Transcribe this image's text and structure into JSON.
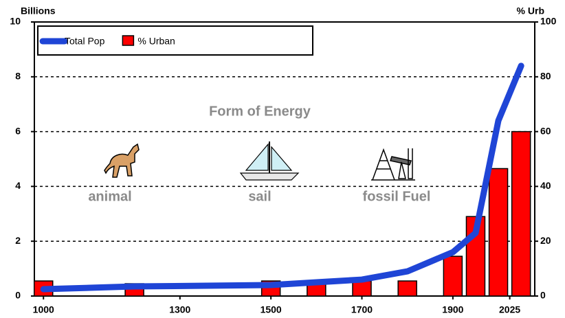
{
  "chart_data": {
    "type": "combo",
    "y_label": "Billions",
    "y2_label": "% Urb",
    "annotations": [
      "Form of Energy",
      "animal",
      "sail",
      "fossil Fuel"
    ],
    "x": [
      1000,
      1200,
      1500,
      1600,
      1700,
      1800,
      1900,
      1950,
      2000,
      2050
    ],
    "xlim": [
      980,
      2080
    ],
    "xticks": [
      1000,
      1300,
      1500,
      1700,
      1900,
      2025
    ],
    "ylim": [
      0,
      10
    ],
    "yticks": [
      0,
      2,
      4,
      6,
      8,
      10
    ],
    "y2lim": [
      0,
      100
    ],
    "y2ticks": [
      0,
      20,
      40,
      60,
      80,
      100
    ],
    "grid": true,
    "legend": "top-left",
    "series": [
      {
        "name": "Total Pop",
        "type": "line",
        "color": "#1f45d6",
        "values": [
          0.25,
          0.35,
          0.4,
          0.5,
          0.6,
          0.9,
          1.6,
          2.3,
          6.4,
          8.4
        ]
      },
      {
        "name": "% Urban",
        "type": "bar",
        "axis": "y2",
        "color": "#ff0000",
        "values": [
          5.5,
          4.5,
          5.5,
          5,
          5.5,
          5.5,
          14.5,
          29,
          46.5,
          60
        ]
      }
    ]
  }
}
